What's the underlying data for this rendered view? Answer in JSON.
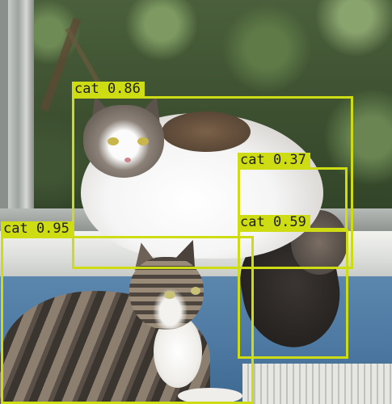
{
  "image": {
    "description": "Two cats on a window sill with object detection boxes",
    "box_color": "#cddc13",
    "label_text_color": "#1f1f1f"
  },
  "detections": [
    {
      "label": "cat",
      "confidence": "0.86",
      "text": "cat 0.86"
    },
    {
      "label": "cat",
      "confidence": "0.37",
      "text": "cat 0.37"
    },
    {
      "label": "cat",
      "confidence": "0.59",
      "text": "cat 0.59"
    },
    {
      "label": "cat",
      "confidence": "0.95",
      "text": "cat 0.95"
    }
  ]
}
